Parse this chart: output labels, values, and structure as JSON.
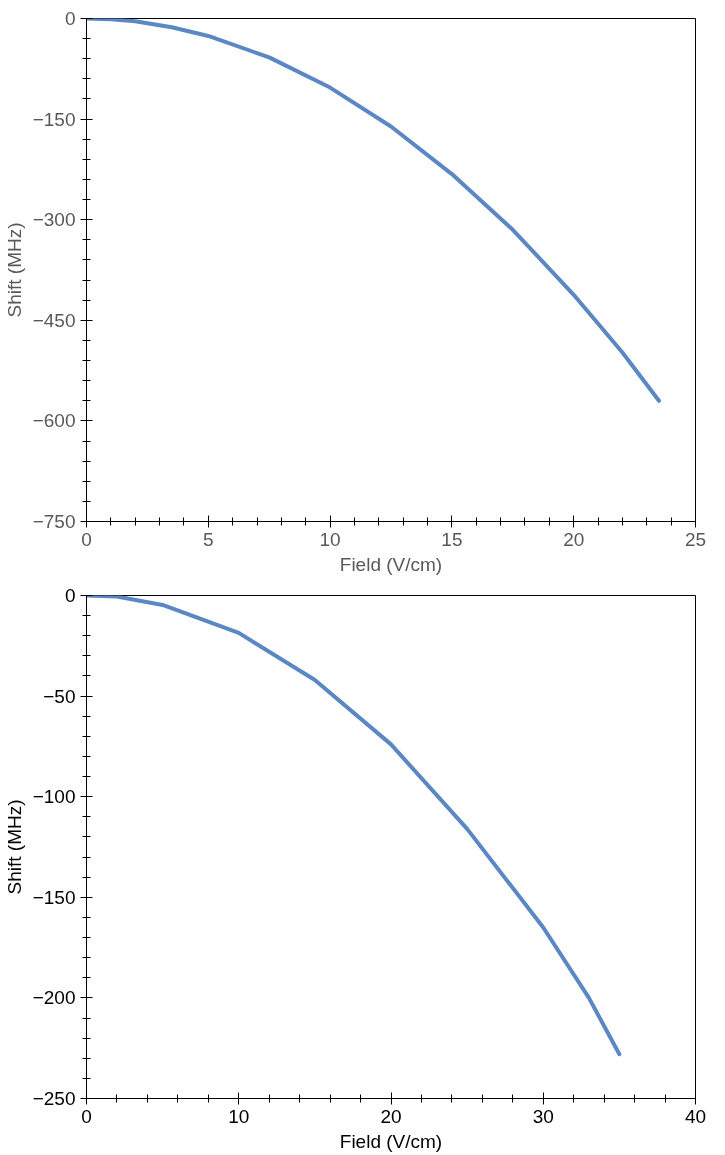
{
  "chart_data": [
    {
      "type": "line",
      "xlabel": "Field (V/cm)",
      "ylabel": "Shift (MHz)",
      "xlim": [
        0,
        25
      ],
      "xticks": [
        0,
        5,
        10,
        15,
        20,
        25
      ],
      "ylim": [
        -750,
        0
      ],
      "yticks": [
        -750,
        -600,
        -450,
        -300,
        -150,
        0
      ],
      "grid": false,
      "marker": "none",
      "line_style": "solid",
      "x": [
        0,
        1,
        2,
        3.5,
        5,
        7.5,
        10,
        12.5,
        15,
        17.5,
        20,
        22,
        23.5
      ],
      "series": [
        {
          "color": "#5b87c5",
          "values": [
            0,
            -1,
            -4,
            -13,
            -26,
            -58,
            -103,
            -161,
            -232,
            -315,
            -412,
            -498,
            -570
          ]
        }
      ]
    },
    {
      "type": "line",
      "xlabel": "Field (V/cm)",
      "ylabel": "Shift (MHz)",
      "xlim": [
        0,
        40
      ],
      "xticks": [
        0,
        10,
        20,
        30,
        40
      ],
      "ylim": [
        -250,
        0
      ],
      "yticks": [
        -250,
        -200,
        -150,
        -100,
        -50,
        0
      ],
      "grid": false,
      "marker": "none",
      "line_style": "solid",
      "x": [
        0,
        2,
        5,
        10,
        15,
        20,
        25,
        30,
        33,
        35
      ],
      "series": [
        {
          "color": "#5b87c5",
          "values": [
            0,
            -0.5,
            -4.7,
            -18.6,
            -42,
            -74,
            -116,
            -165,
            -200,
            -228
          ]
        }
      ]
    }
  ]
}
